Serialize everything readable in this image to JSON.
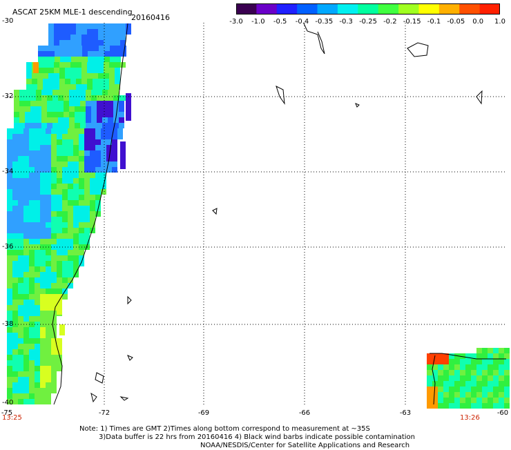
{
  "header": {
    "title": "ASCAT 25KM MLE-1 descending",
    "date": "20160416"
  },
  "colorbar": {
    "labels": [
      "-3.0",
      "-1.0",
      "-0.5",
      "-0.4",
      "-0.35",
      "-0.3",
      "-0.25",
      "-0.2",
      "-0.15",
      "-0.1",
      "-0.05",
      "0.0",
      "1.0"
    ],
    "colors": [
      "#3a0050",
      "#6a00c8",
      "#2020ff",
      "#0060ff",
      "#00a8ff",
      "#00f0f0",
      "#00ffa0",
      "#40ff40",
      "#a0ff20",
      "#ffff00",
      "#ffb000",
      "#ff5000",
      "#ff2000"
    ]
  },
  "axes": {
    "y_labels": [
      "-30",
      "-32",
      "-34",
      "-36",
      "-38",
      "-40"
    ],
    "x_labels": [
      "-75",
      "-72",
      "-69",
      "-66",
      "-63",
      "-60"
    ]
  },
  "times": {
    "left": "13:25",
    "right": "13:26"
  },
  "notes": {
    "line1": "Note: 1) Times are GMT 2)Times along bottom correspond to measurement at ~35S",
    "line2": "3)Data buffer is 22 hrs from 20160416 4) Black wind barbs indicate possible contamination",
    "line3": "NOAA/NESDIS/Center for Satellite Applications and Research"
  }
}
